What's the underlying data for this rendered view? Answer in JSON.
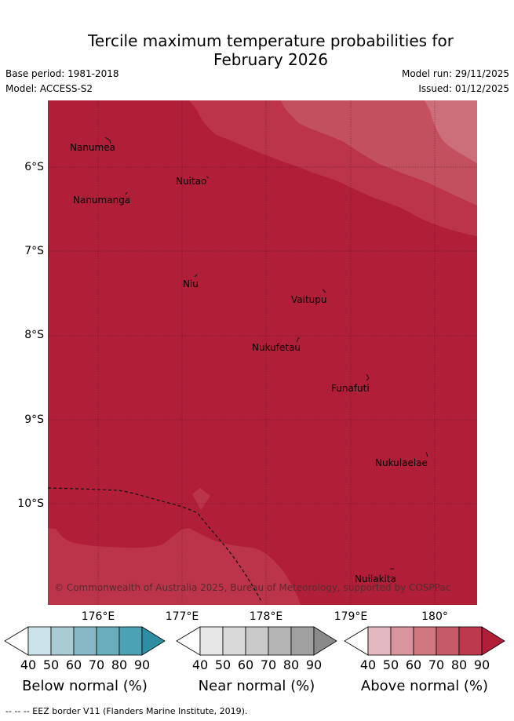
{
  "header": {
    "title_line1": "Tercile maximum temperature probabilities for",
    "title_line2": "February 2026",
    "base_period": "Base period: 1981-2018",
    "model": "Model: ACCESS-S2",
    "model_run": "Model run: 29/11/2025",
    "issued": "Issued: 01/12/2025"
  },
  "map": {
    "latitude_labels": [
      "6°S",
      "7°S",
      "8°S",
      "9°S",
      "10°S"
    ],
    "longitude_labels": [
      "176°E",
      "177°E",
      "178°E",
      "179°E",
      "180°"
    ],
    "islands": [
      "Nanumea",
      "Nuitao",
      "Nanumanga",
      "Niu",
      "Vaitupu",
      "Nukufetau",
      "Funafuti",
      "Nukulaelae",
      "Nuilakita"
    ],
    "copyright": "© Commonwealth of Australia 2025, Bureau of Meteorology, supported by COSPPac",
    "colors": {
      "above_90": "#b01e38",
      "above_80": "#bb3449",
      "above_70": "#c3505e",
      "above_60": "#cd6f7a"
    }
  },
  "legend": {
    "below": {
      "label": "Below normal (%)",
      "colors": [
        "#ffffff",
        "#cbe3ea",
        "#a9ccd3",
        "#88b8c5",
        "#6aaebe",
        "#4aa2b4",
        "#2e8ea2"
      ]
    },
    "near": {
      "label": "Near normal (%)",
      "colors": [
        "#ffffff",
        "#e6e6e6",
        "#d9d9d9",
        "#cacaca",
        "#b4b4b4",
        "#a0a0a0",
        "#8a8a8a"
      ]
    },
    "above": {
      "label": "Above normal (%)",
      "colors": [
        "#ffffff",
        "#e4b8c0",
        "#d8959d",
        "#cf7880",
        "#c55a68",
        "#bd3a4e",
        "#b01e38"
      ]
    },
    "ticks": [
      "40",
      "50",
      "60",
      "70",
      "80",
      "90"
    ]
  },
  "footnote": "-- -- -- EEZ border V11 (Flanders Marine Institute, 2019)."
}
